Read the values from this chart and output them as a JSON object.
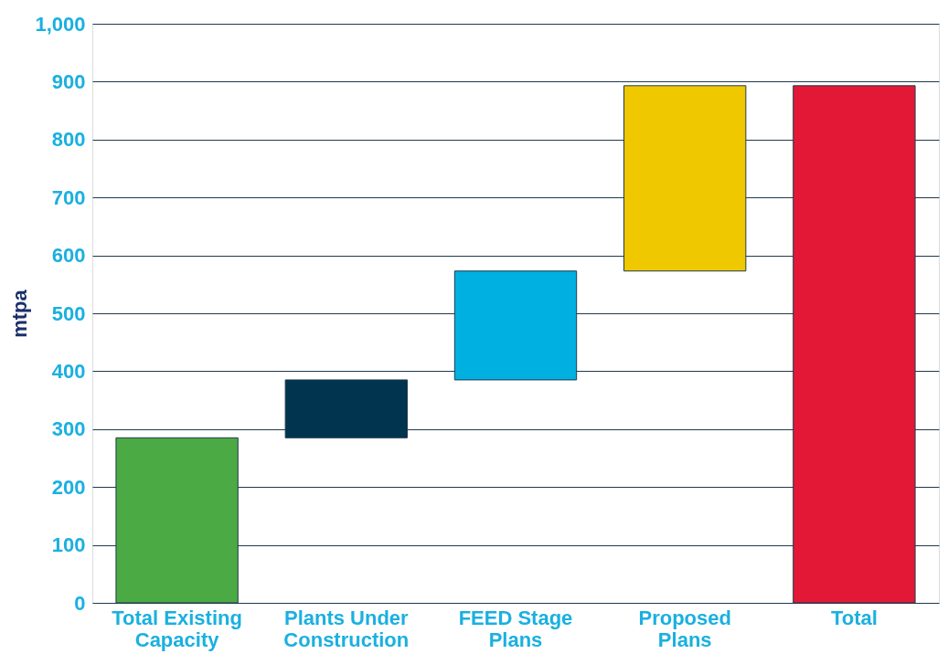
{
  "chart_data": {
    "type": "bar",
    "ylabel": "mtpa",
    "categories": [
      "Total Existing Capacity",
      "Plants Under Construction",
      "FEED Stage Plans",
      "Proposed Plans",
      "Total"
    ],
    "values": [
      285,
      100,
      188,
      320,
      893
    ],
    "base": [
      0,
      285,
      385,
      573,
      0
    ],
    "colors": [
      "#4caa44",
      "#00344f",
      "#00b0e0",
      "#f0c800",
      "#e31837"
    ],
    "ylim": [
      0,
      1000
    ],
    "yticks": [
      0,
      100,
      200,
      300,
      400,
      500,
      600,
      700,
      800,
      900,
      {
        "value": 1000,
        "label": "1,000"
      }
    ],
    "grid": "y",
    "legend": false
  }
}
